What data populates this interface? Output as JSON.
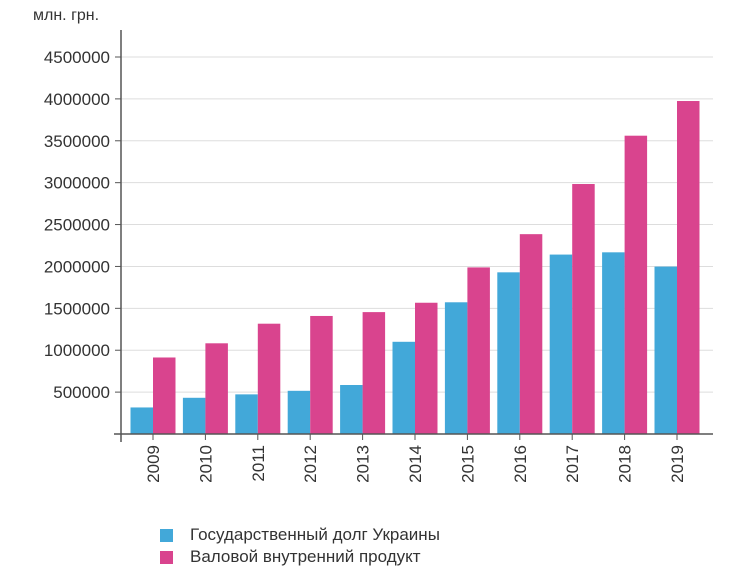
{
  "chart_data": {
    "type": "bar",
    "title": "",
    "unit_label": "млн. грн.",
    "xlabel": "",
    "ylabel": "млн. грн.",
    "ylim": [
      0,
      4500000
    ],
    "yticks": [
      500000,
      1000000,
      1500000,
      2000000,
      2500000,
      3000000,
      3500000,
      4000000,
      4500000
    ],
    "grid": true,
    "legend_position": "bottom",
    "categories": [
      "2009",
      "2010",
      "2011",
      "2012",
      "2013",
      "2014",
      "2015",
      "2016",
      "2017",
      "2018",
      "2019"
    ],
    "series": [
      {
        "name": "Государственный долг Украины",
        "color": "#42A8D9",
        "values": [
          316900,
          432200,
          473100,
          515500,
          584800,
          1100600,
          1572200,
          1929800,
          2141700,
          2168600,
          1998300
        ]
      },
      {
        "name": "Валовой внутренний продукт",
        "color": "#D9448E",
        "values": [
          913300,
          1082600,
          1316600,
          1408900,
          1454900,
          1566700,
          1988500,
          2385400,
          2983900,
          3560600,
          3974600
        ]
      }
    ]
  },
  "legend": {
    "items": [
      {
        "label": "Государственный долг Украины",
        "color": "#42A8D9"
      },
      {
        "label": "Валовой внутренний продукт",
        "color": "#D9448E"
      }
    ]
  },
  "colors": {
    "axis": "#555555",
    "grid": "#dddddd",
    "text": "#333333"
  }
}
